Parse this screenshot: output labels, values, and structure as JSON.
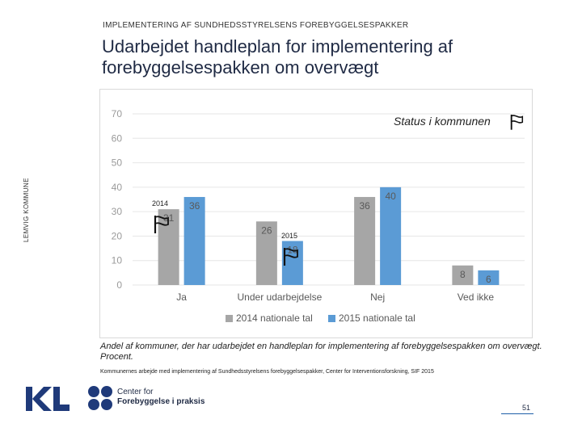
{
  "header": {
    "top_label": "IMPLEMENTERING AF SUNDHEDSSTYRELSENS FOREBYGGELSESPAKKER"
  },
  "title": "Udarbejdet handleplan for implementering af forebyggelsespakken om overvægt",
  "side_label": "LEMVIG KOMMUNE",
  "chart_data": {
    "type": "bar",
    "categories": [
      "Ja",
      "Under udarbejdelse",
      "Nej",
      "Ved ikke"
    ],
    "series": [
      {
        "name": "2014 nationale tal",
        "values": [
          31,
          26,
          36,
          8
        ],
        "color": "#a6a6a6"
      },
      {
        "name": "2015 nationale tal",
        "values": [
          36,
          18,
          40,
          6
        ],
        "color": "#5b9bd5"
      }
    ],
    "ylim": [
      0,
      70
    ],
    "yticks": [
      0,
      10,
      20,
      30,
      40,
      50,
      60,
      70
    ],
    "annotation_title": "Status i kommunen",
    "year_markers": [
      "2014",
      "2015"
    ]
  },
  "caption": "Andel af kommuner, der har udarbejdet en handleplan for implementering af forebyggelsespakken om overvægt. Procent.",
  "source": "Kommunernes arbejde med implementering af Sundhedsstyrelsens forebyggelsespakker, Center for Interventionsforskning, SIF 2015",
  "footer": {
    "kl_logo": "KL",
    "center_line1": "Center for",
    "center_line2": "Forebyggelse i praksis",
    "page_number": "51"
  }
}
